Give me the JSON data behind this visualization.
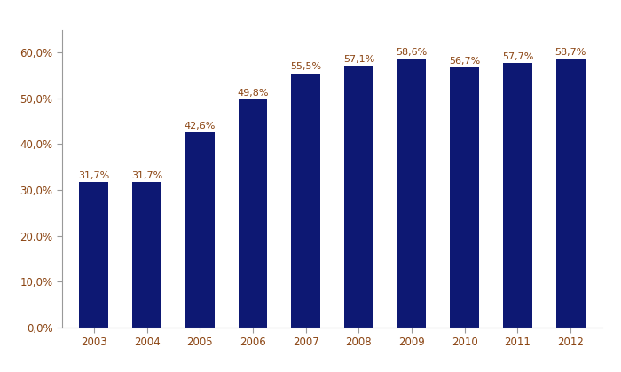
{
  "categories": [
    "2003",
    "2004",
    "2005",
    "2006",
    "2007",
    "2008",
    "2009",
    "2010",
    "2011",
    "2012"
  ],
  "values": [
    31.7,
    31.7,
    42.6,
    49.8,
    55.5,
    57.1,
    58.6,
    56.7,
    57.7,
    58.7
  ],
  "labels": [
    "31,7%",
    "31,7%",
    "42,6%",
    "49,8%",
    "55,5%",
    "57,1%",
    "58,6%",
    "56,7%",
    "57,7%",
    "58,7%"
  ],
  "bar_color": "#0D1873",
  "label_color": "#8B4513",
  "tick_color": "#8B4513",
  "background_color": "#ffffff",
  "ylim": [
    0,
    65
  ],
  "yticks": [
    0.0,
    10.0,
    20.0,
    30.0,
    40.0,
    50.0,
    60.0
  ],
  "ytick_labels": [
    "0,0%",
    "10,0%",
    "20,0%",
    "30,0%",
    "40,0%",
    "50,0%",
    "60,0%"
  ],
  "spine_color": "#999999",
  "bar_width": 0.55
}
